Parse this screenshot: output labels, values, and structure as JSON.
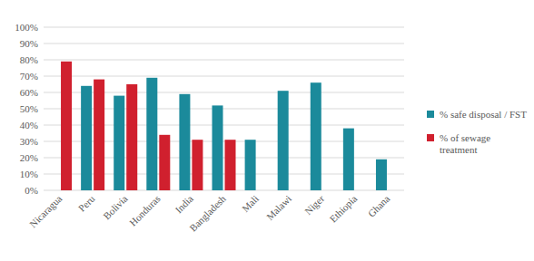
{
  "chart_data": {
    "type": "bar",
    "categories": [
      "Nicaragua",
      "Peru",
      "Bolivia",
      "Honduras",
      "India",
      "Bangladesh",
      "Mali",
      "Malawi",
      "Niger",
      "Ethiopia",
      "Ghana"
    ],
    "series": [
      {
        "name": "% safe disposal / FST",
        "color": "#1b8a9b",
        "values": [
          null,
          64,
          58,
          69,
          59,
          52,
          31,
          61,
          66,
          38,
          19
        ]
      },
      {
        "name": "% of sewage treatment",
        "color": "#d0202e",
        "values": [
          79,
          68,
          65,
          34,
          31,
          31,
          null,
          null,
          null,
          null,
          null
        ]
      }
    ],
    "ylim": [
      0,
      100
    ],
    "yticks": [
      {
        "value": 0,
        "label": "0%"
      },
      {
        "value": 10,
        "label": "10%"
      },
      {
        "value": 20,
        "label": "20%"
      },
      {
        "value": 30,
        "label": "30%"
      },
      {
        "value": 40,
        "label": "40%"
      },
      {
        "value": 50,
        "label": "50%"
      },
      {
        "value": 60,
        "label": "60%"
      },
      {
        "value": 70,
        "label": "70%"
      },
      {
        "value": 80,
        "label": "80%"
      },
      {
        "value": 90,
        "label": "90%"
      },
      {
        "value": 100,
        "label": "100%"
      }
    ],
    "grid": true,
    "legend": "right"
  }
}
